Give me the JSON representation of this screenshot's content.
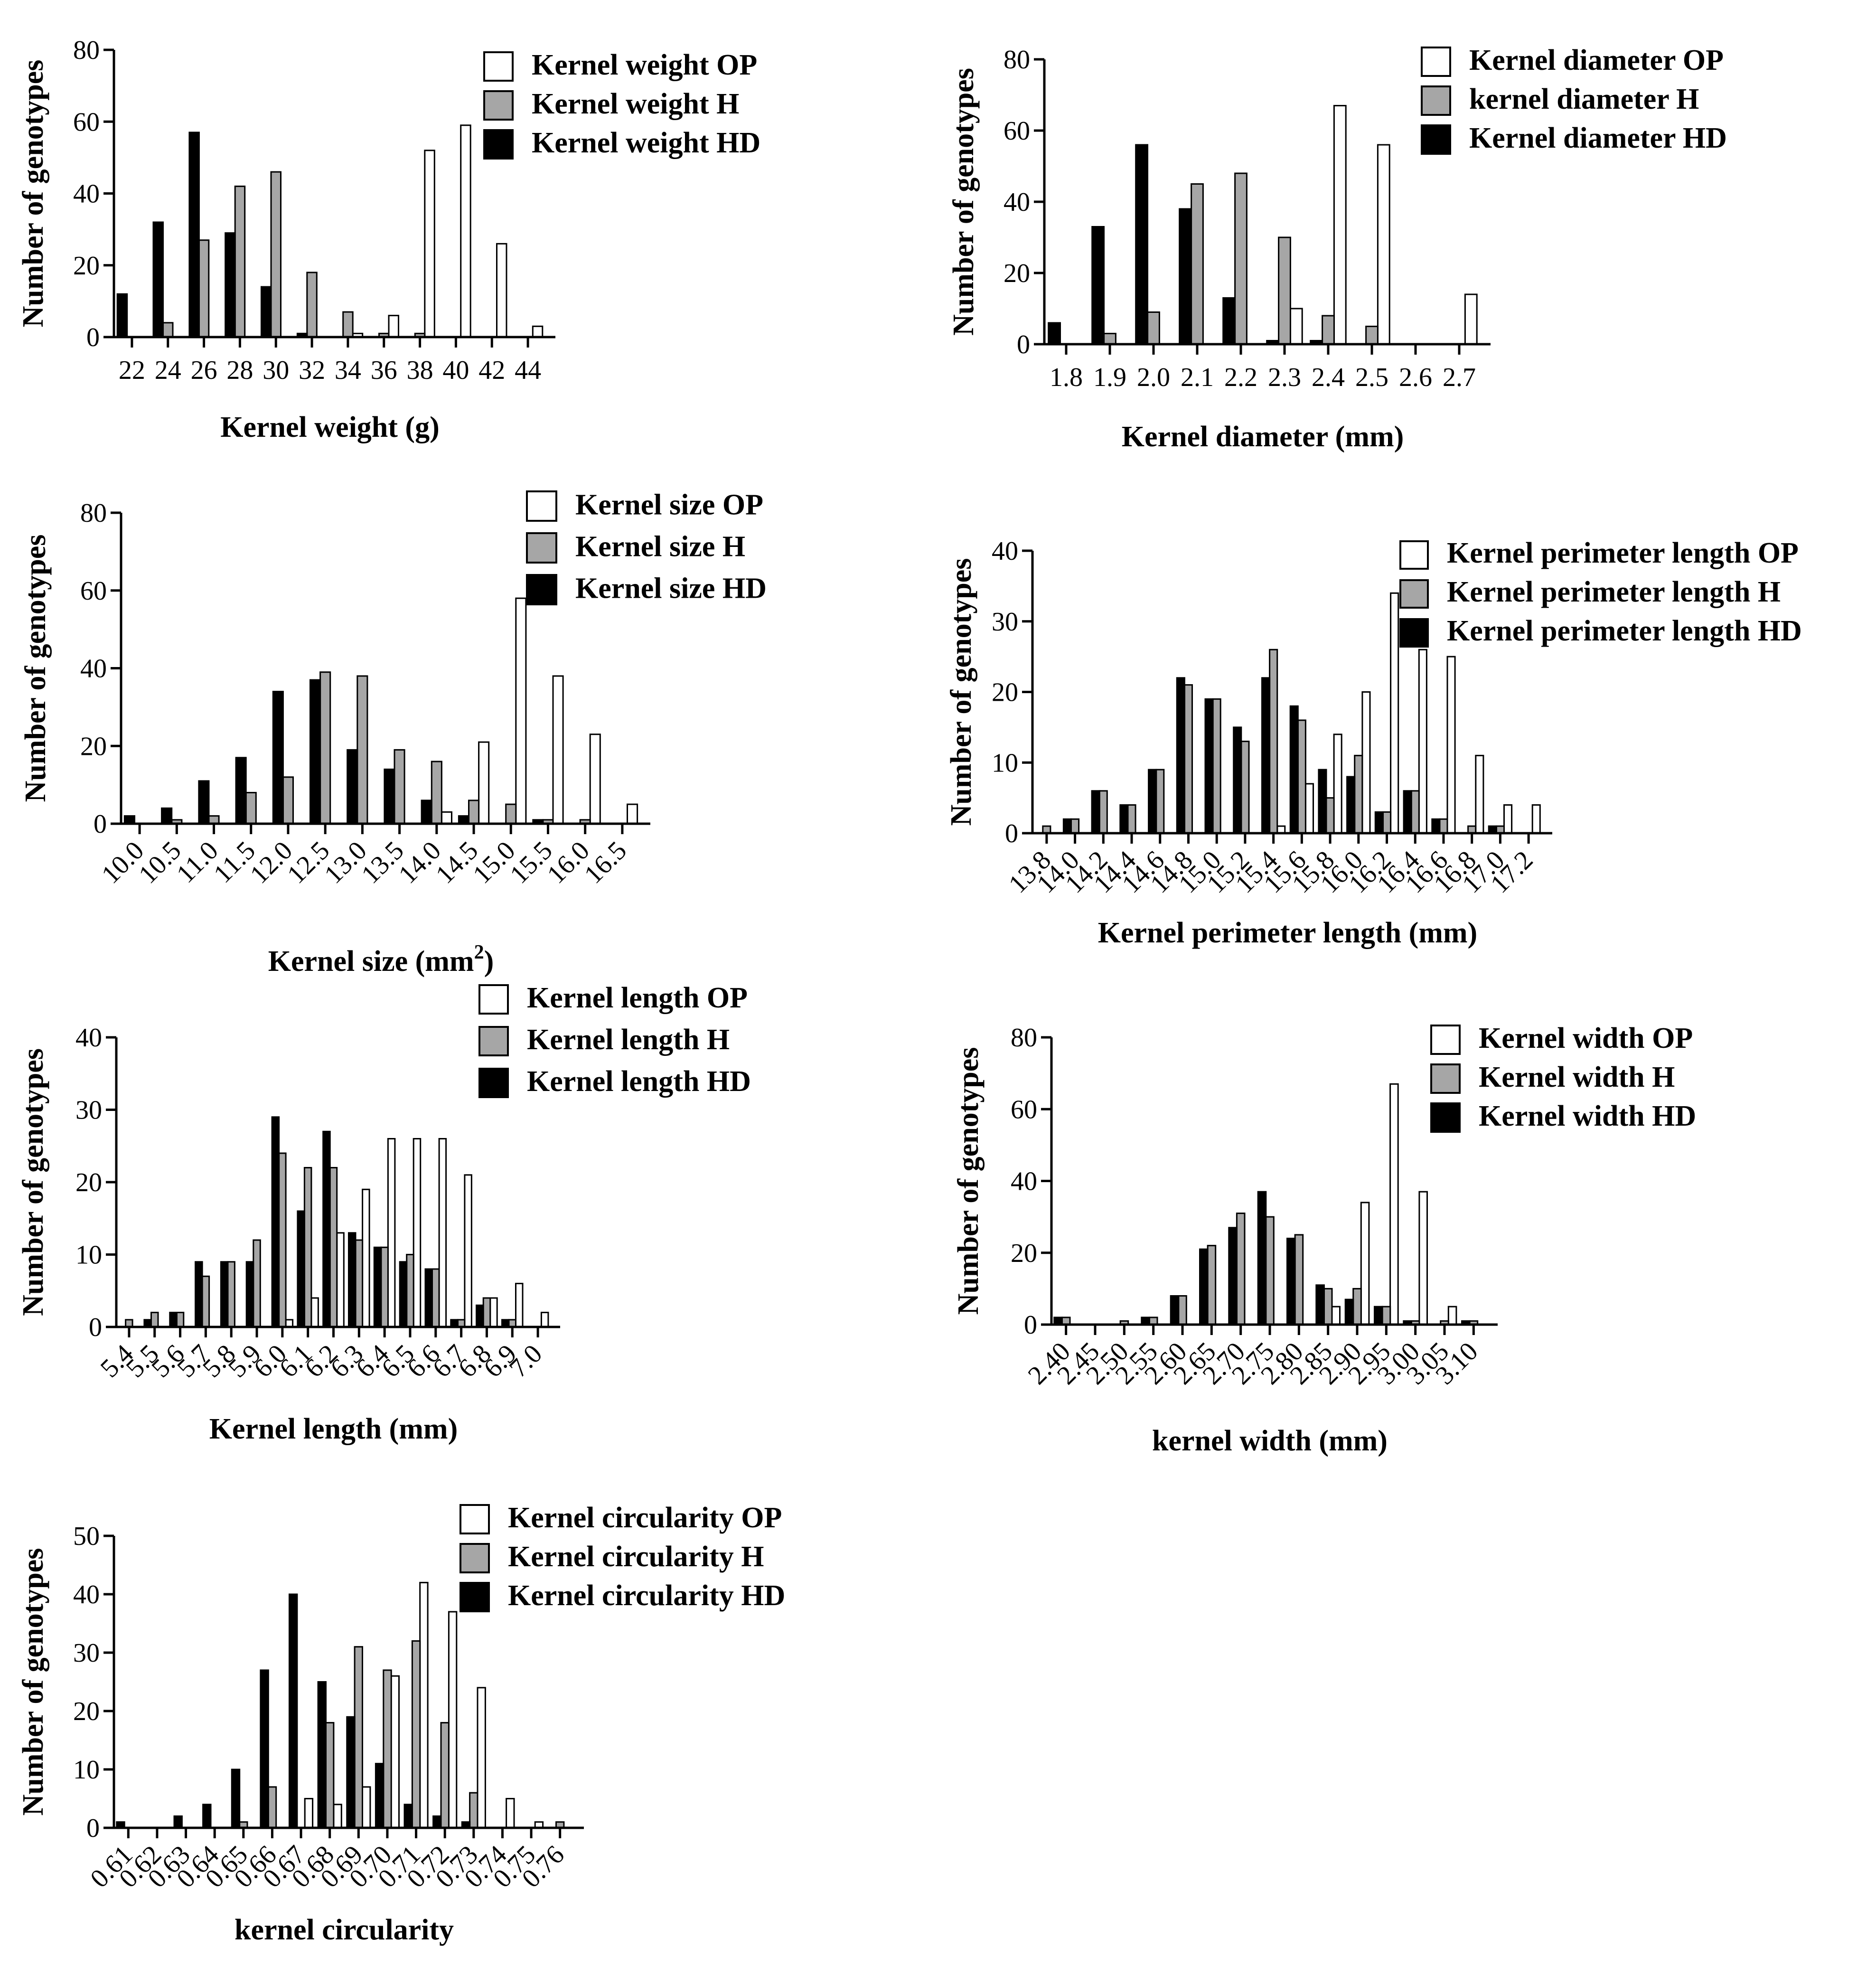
{
  "colors": {
    "op": "#ffffff",
    "h": "#a6a6a6",
    "hd": "#000000",
    "stroke": "#000000"
  },
  "chart_data": [
    {
      "id": "kernel-weight",
      "type": "bar",
      "title": "",
      "xlabel": "Kernel weight (g)",
      "xlabel_sup": "",
      "ylabel": "Number of genotypes",
      "ylim": [
        0,
        80
      ],
      "yticks": [
        0,
        20,
        40,
        60,
        80
      ],
      "categories": [
        "22",
        "24",
        "26",
        "28",
        "30",
        "32",
        "34",
        "36",
        "38",
        "40",
        "42",
        "44"
      ],
      "tick_rotation": 0,
      "legend_position": "top-right",
      "series": [
        {
          "name": "Kernel weight OP",
          "key": "op",
          "values": [
            0,
            0,
            0,
            0,
            0,
            0,
            1,
            6,
            52,
            59,
            26,
            3
          ]
        },
        {
          "name": "Kernel weight H",
          "key": "h",
          "values": [
            0,
            4,
            27,
            42,
            46,
            18,
            7,
            1,
            1,
            0,
            0,
            0
          ]
        },
        {
          "name": "Kernel weight HD",
          "key": "hd",
          "values": [
            12,
            32,
            57,
            29,
            14,
            1,
            0,
            0,
            0,
            0,
            0,
            0
          ]
        }
      ]
    },
    {
      "id": "kernel-diameter",
      "type": "bar",
      "title": "",
      "xlabel": "Kernel diameter (mm)",
      "xlabel_sup": "",
      "ylabel": "Number of genotypes",
      "ylim": [
        0,
        80
      ],
      "yticks": [
        0,
        20,
        40,
        60,
        80
      ],
      "categories": [
        "1.8",
        "1.9",
        "2.0",
        "2.1",
        "2.2",
        "2.3",
        "2.4",
        "2.5",
        "2.6",
        "2.7"
      ],
      "tick_rotation": 0,
      "legend_position": "top-right",
      "series": [
        {
          "name": "Kernel diameter OP",
          "key": "op",
          "values": [
            0,
            0,
            0,
            0,
            0,
            10,
            67,
            56,
            0,
            14
          ]
        },
        {
          "name": "kernel diameter H",
          "key": "h",
          "values": [
            0,
            3,
            9,
            45,
            48,
            30,
            8,
            5,
            0,
            0
          ]
        },
        {
          "name": "Kernel diameter HD",
          "key": "hd",
          "values": [
            6,
            33,
            56,
            38,
            13,
            1,
            1,
            0,
            0,
            0
          ]
        }
      ]
    },
    {
      "id": "kernel-size",
      "type": "bar",
      "title": "",
      "xlabel": "Kernel size (mm",
      "xlabel_sup": "2",
      "xlabel_suffix": ")",
      "ylabel": "Number of genotypes",
      "ylim": [
        0,
        80
      ],
      "yticks": [
        0,
        20,
        40,
        60,
        80
      ],
      "categories": [
        "10.0",
        "10.5",
        "11.0",
        "11.5",
        "12.0",
        "12.5",
        "13.0",
        "13.5",
        "14.0",
        "14.5",
        "15.0",
        "15.5",
        "16.0",
        "16.5"
      ],
      "tick_rotation": -45,
      "legend_position": "top-right",
      "series": [
        {
          "name": "Kernel size OP",
          "key": "op",
          "values": [
            0,
            0,
            0,
            0,
            0,
            0,
            0,
            0,
            3,
            21,
            58,
            38,
            23,
            5
          ]
        },
        {
          "name": "Kernel size H",
          "key": "h",
          "values": [
            0,
            1,
            2,
            8,
            12,
            39,
            38,
            19,
            16,
            6,
            5,
            1,
            1,
            0
          ]
        },
        {
          "name": "Kernel size HD",
          "key": "hd",
          "values": [
            2,
            4,
            11,
            17,
            34,
            37,
            19,
            14,
            6,
            2,
            0,
            1,
            0,
            0
          ]
        }
      ]
    },
    {
      "id": "kernel-perimeter",
      "type": "bar",
      "title": "",
      "xlabel": "Kernel perimeter length (mm)",
      "xlabel_sup": "",
      "ylabel": "Number of genotypes",
      "ylim": [
        0,
        40
      ],
      "yticks": [
        0,
        10,
        20,
        30,
        40
      ],
      "categories": [
        "13.8",
        "14.0",
        "14.2",
        "14.4",
        "14.6",
        "14.8",
        "15.0",
        "15.2",
        "15.4",
        "15.6",
        "15.8",
        "16.0",
        "16.2",
        "16.4",
        "16.6",
        "16.8",
        "17.0",
        "17.2"
      ],
      "tick_rotation": -45,
      "legend_position": "top-right",
      "series": [
        {
          "name": "Kernel perimeter length OP",
          "key": "op",
          "values": [
            0,
            0,
            0,
            0,
            0,
            0,
            0,
            0,
            1,
            7,
            14,
            20,
            34,
            26,
            25,
            11,
            4,
            4
          ]
        },
        {
          "name": "Kernel perimeter length H",
          "key": "h",
          "values": [
            1,
            2,
            6,
            4,
            9,
            21,
            19,
            13,
            26,
            16,
            5,
            11,
            3,
            6,
            2,
            1,
            1,
            0
          ]
        },
        {
          "name": "Kernel perimeter length HD",
          "key": "hd",
          "values": [
            0,
            2,
            6,
            4,
            9,
            22,
            19,
            15,
            22,
            18,
            9,
            8,
            3,
            6,
            2,
            0,
            1,
            0
          ]
        }
      ]
    },
    {
      "id": "kernel-length",
      "type": "bar",
      "title": "",
      "xlabel": "Kernel length (mm)",
      "xlabel_sup": "",
      "ylabel": "Number of genotypes",
      "ylim": [
        0,
        40
      ],
      "yticks": [
        0,
        10,
        20,
        30,
        40
      ],
      "categories": [
        "5.4",
        "5.5",
        "5.6",
        "5.7",
        "5.8",
        "5.9",
        "6.0",
        "6.1",
        "6.2",
        "6.3",
        "6.4",
        "6.5",
        "6.6",
        "6.7",
        "6.8",
        "6.9",
        "7.0"
      ],
      "tick_rotation": -45,
      "legend_position": "top-right",
      "series": [
        {
          "name": "Kernel length OP",
          "key": "op",
          "values": [
            0,
            0,
            0,
            0,
            0,
            0,
            1,
            4,
            13,
            19,
            26,
            26,
            26,
            21,
            4,
            6,
            2
          ]
        },
        {
          "name": "Kernel length H",
          "key": "h",
          "values": [
            1,
            2,
            2,
            7,
            9,
            12,
            24,
            22,
            22,
            12,
            11,
            10,
            8,
            1,
            4,
            1,
            0
          ]
        },
        {
          "name": "Kernel length HD",
          "key": "hd",
          "values": [
            0,
            1,
            2,
            9,
            9,
            9,
            29,
            16,
            27,
            13,
            11,
            9,
            8,
            1,
            3,
            1,
            0
          ]
        }
      ]
    },
    {
      "id": "kernel-width",
      "type": "bar",
      "title": "",
      "xlabel": "kernel width (mm)",
      "xlabel_sup": "",
      "ylabel": "Number of genotypes",
      "ylim": [
        0,
        80
      ],
      "yticks": [
        0,
        20,
        40,
        60,
        80
      ],
      "categories": [
        "2.40",
        "2.45",
        "2.50",
        "2.55",
        "2.60",
        "2.65",
        "2.70",
        "2.75",
        "2.80",
        "2.85",
        "2.90",
        "2.95",
        "3.00",
        "3.05",
        "3.10"
      ],
      "tick_rotation": -45,
      "legend_position": "top-right",
      "series": [
        {
          "name": "Kernel width OP",
          "key": "op",
          "values": [
            0,
            0,
            0,
            0,
            0,
            0,
            0,
            0,
            0,
            5,
            34,
            67,
            37,
            5,
            0
          ]
        },
        {
          "name": "Kernel width H",
          "key": "h",
          "values": [
            2,
            0,
            1,
            2,
            8,
            22,
            31,
            30,
            25,
            10,
            10,
            5,
            1,
            1,
            1
          ]
        },
        {
          "name": "Kernel width HD",
          "key": "hd",
          "values": [
            2,
            0,
            0,
            2,
            8,
            21,
            27,
            37,
            24,
            11,
            7,
            5,
            1,
            0,
            1
          ]
        }
      ]
    },
    {
      "id": "kernel-circularity",
      "type": "bar",
      "title": "",
      "xlabel": "kernel circularity",
      "xlabel_sup": "",
      "ylabel": "Number of genotypes",
      "ylim": [
        0,
        50
      ],
      "yticks": [
        0,
        10,
        20,
        30,
        40,
        50
      ],
      "categories": [
        "0.61",
        "0.62",
        "0.63",
        "0.64",
        "0.65",
        "0.66",
        "0.67",
        "0.68",
        "0.69",
        "0.70",
        "0.71",
        "0.72",
        "0.73",
        "0.74",
        "0.75",
        "0.76"
      ],
      "tick_rotation": -45,
      "legend_position": "top-right",
      "series": [
        {
          "name": "Kernel circularity OP",
          "key": "op",
          "values": [
            0,
            0,
            0,
            0,
            0,
            0,
            5,
            4,
            7,
            26,
            42,
            37,
            24,
            5,
            1,
            0
          ]
        },
        {
          "name": "Kernel circularity H",
          "key": "h",
          "values": [
            0,
            0,
            0,
            0,
            1,
            7,
            0,
            18,
            31,
            27,
            32,
            18,
            6,
            0,
            0,
            1
          ]
        },
        {
          "name": "Kernel circularity HD",
          "key": "hd",
          "values": [
            1,
            0,
            2,
            4,
            10,
            27,
            40,
            25,
            19,
            11,
            4,
            2,
            1,
            0,
            0,
            0
          ]
        }
      ]
    }
  ]
}
